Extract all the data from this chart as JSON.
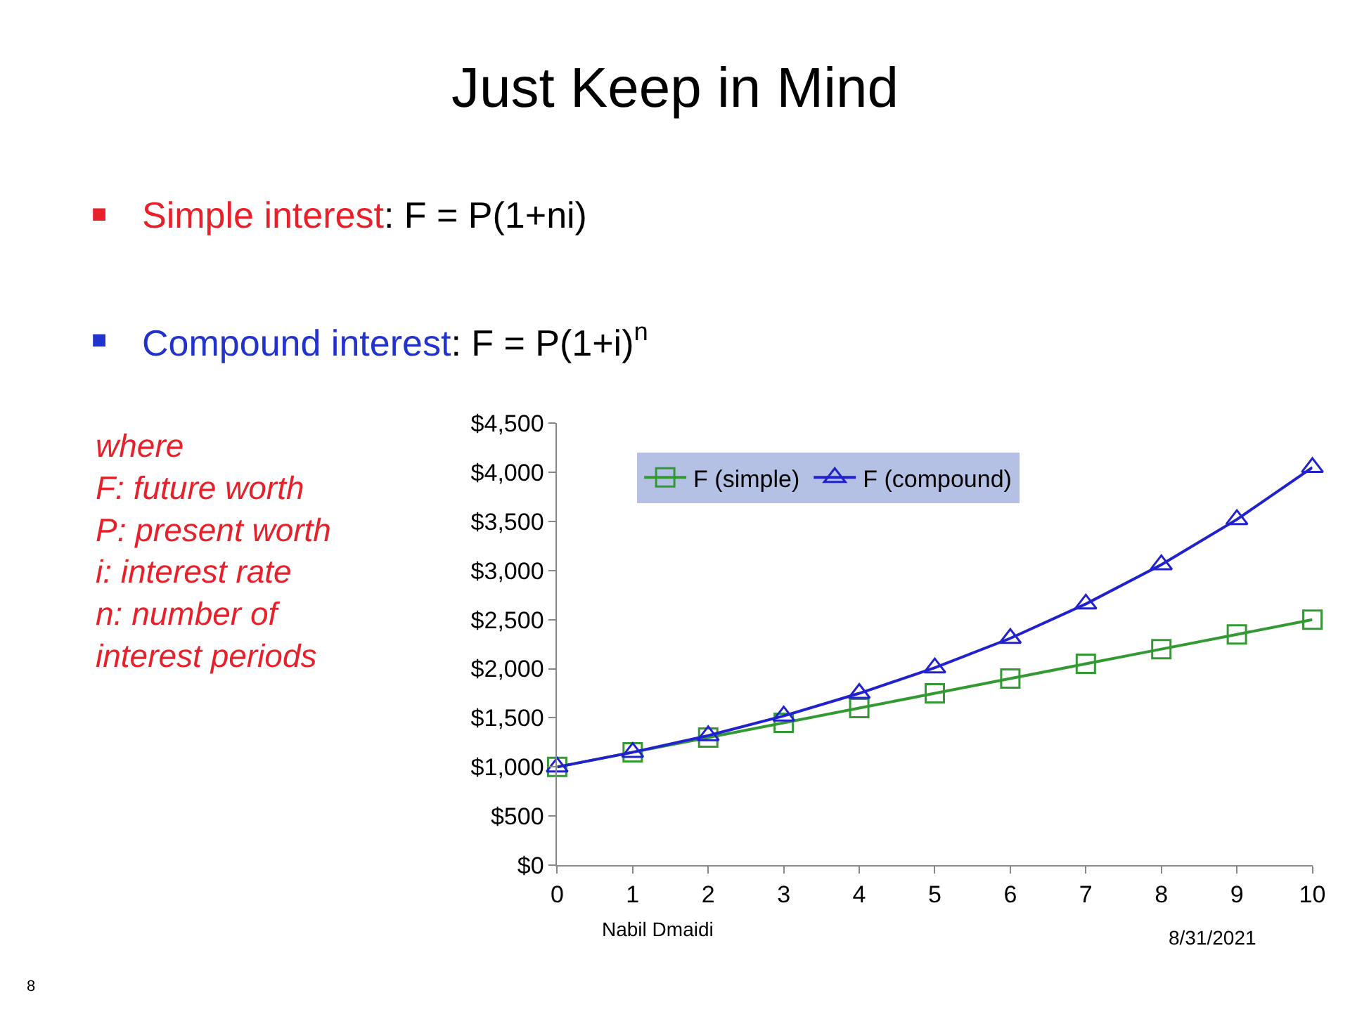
{
  "chart_data": {
    "type": "line",
    "title": "Just Keep in Mind",
    "annotations": [
      "Simple interest",
      ": F = P(1+ni)",
      "Compound interest",
      ": F = P(1+i)$^{n}$",
      "where\nF: future worth\nP: present worth\ni: interest rate\nn: number of\ninterest periods",
      "Nabil Dmaidi",
      "8/31/2021",
      "8"
    ],
    "x": [
      0,
      1,
      2,
      3,
      4,
      5,
      6,
      7,
      8,
      9,
      10
    ],
    "series": [
      {
        "name": "F (simple)",
        "color": "#339933",
        "marker": "square",
        "values": [
          1000,
          1150,
          1300,
          1450,
          1600,
          1750,
          1900,
          2050,
          2200,
          2350,
          2500
        ]
      },
      {
        "name": "F (compound)",
        "color": "#2222cc",
        "marker": "triangle",
        "values": [
          1000,
          1150,
          1320,
          1520,
          1750,
          2010,
          2310,
          2660,
          3060,
          3520,
          4050
        ]
      }
    ],
    "xlim": [
      0,
      10
    ],
    "xticks": [
      0,
      1,
      2,
      3,
      4,
      5,
      6,
      7,
      8,
      9,
      10
    ],
    "ylim": [
      0,
      4500
    ],
    "yticks": [
      {
        "value": 0,
        "label": "$0"
      },
      {
        "value": 500,
        "label": "$500"
      },
      {
        "value": 1000,
        "label": "$1,000"
      },
      {
        "value": 1500,
        "label": "$1,500"
      },
      {
        "value": 2000,
        "label": "$2,000"
      },
      {
        "value": 2500,
        "label": "$2,500"
      },
      {
        "value": 3000,
        "label": "$3,000"
      },
      {
        "value": 3500,
        "label": "$3,500"
      },
      {
        "value": 4000,
        "label": "$4,000"
      },
      {
        "value": 4500,
        "label": "$4,500"
      }
    ],
    "legend": "top",
    "line_style": "solid"
  }
}
